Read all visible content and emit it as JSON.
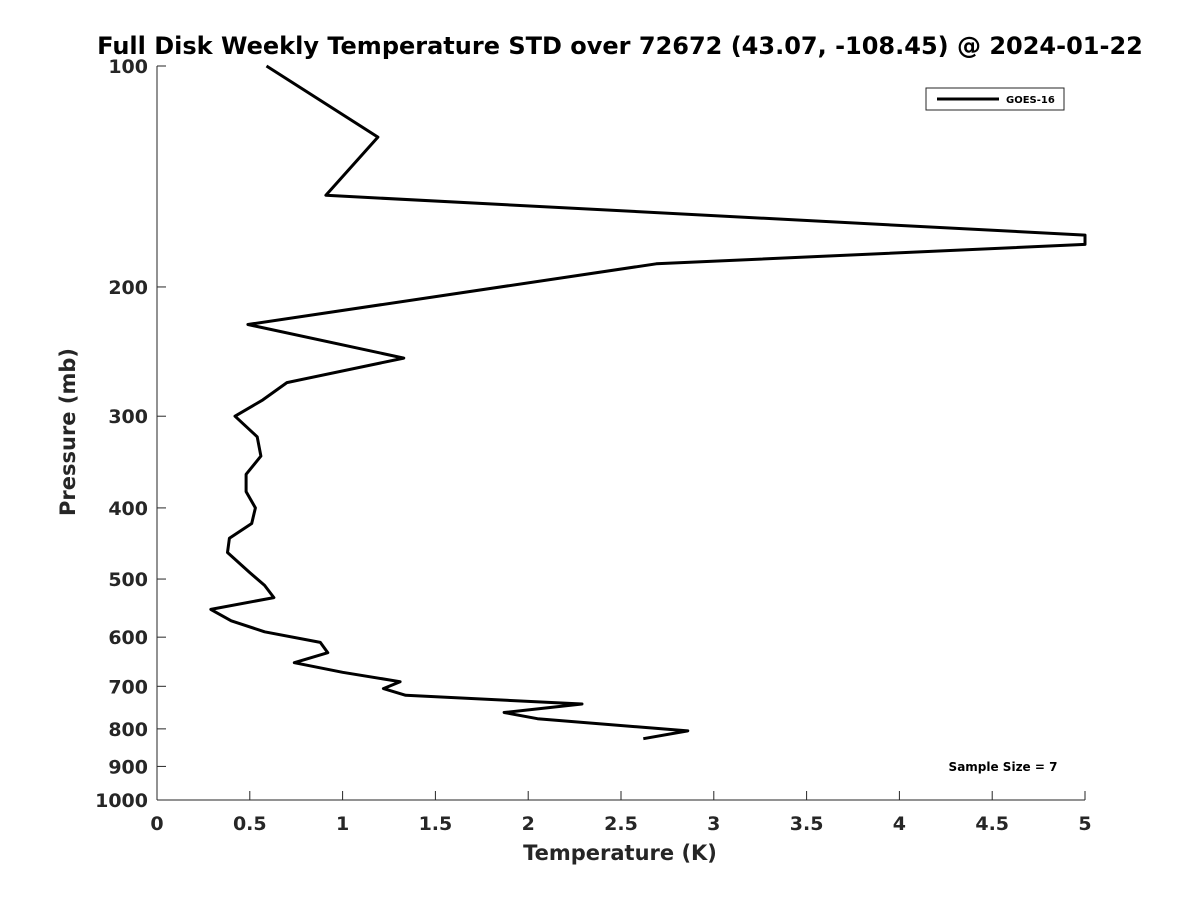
{
  "chart_data": {
    "type": "line",
    "title": "Full Disk Weekly Temperature STD over 72672 (43.07, -108.45) @ 2024-01-22",
    "xlabel": "Temperature (K)",
    "ylabel": "Pressure (mb)",
    "xlim": [
      0,
      5
    ],
    "ylim": [
      100,
      1000
    ],
    "yscale": "log",
    "y_reversed": true,
    "x_ticks": [
      0,
      0.5,
      1,
      1.5,
      2,
      2.5,
      3,
      3.5,
      4,
      4.5,
      5
    ],
    "x_tick_labels": [
      "0",
      "0.5",
      "1",
      "1.5",
      "2",
      "2.5",
      "3",
      "3.5",
      "4",
      "4.5",
      "5"
    ],
    "y_ticks": [
      100,
      200,
      300,
      400,
      500,
      600,
      700,
      800,
      900,
      1000
    ],
    "y_tick_labels": [
      "100",
      "200",
      "300",
      "400",
      "500",
      "600",
      "700",
      "800",
      "900",
      "1000"
    ],
    "legend": {
      "entries": [
        "GOES-16"
      ],
      "placement": "top-right"
    },
    "annotation": "Sample Size = 7",
    "series": [
      {
        "name": "GOES-16",
        "color": "#000000",
        "points": [
          {
            "x": 0.59,
            "p": 100
          },
          {
            "x": 1.19,
            "p": 125
          },
          {
            "x": 0.91,
            "p": 150
          },
          {
            "x": 5.0,
            "p": 170
          },
          {
            "x": 5.0,
            "p": 175
          },
          {
            "x": 2.69,
            "p": 186
          },
          {
            "x": 0.49,
            "p": 225
          },
          {
            "x": 1.33,
            "p": 250
          },
          {
            "x": 0.7,
            "p": 270
          },
          {
            "x": 0.57,
            "p": 285
          },
          {
            "x": 0.42,
            "p": 300
          },
          {
            "x": 0.54,
            "p": 320
          },
          {
            "x": 0.56,
            "p": 340
          },
          {
            "x": 0.48,
            "p": 360
          },
          {
            "x": 0.48,
            "p": 380
          },
          {
            "x": 0.53,
            "p": 400
          },
          {
            "x": 0.51,
            "p": 420
          },
          {
            "x": 0.39,
            "p": 440
          },
          {
            "x": 0.38,
            "p": 460
          },
          {
            "x": 0.5,
            "p": 490
          },
          {
            "x": 0.58,
            "p": 510
          },
          {
            "x": 0.63,
            "p": 530
          },
          {
            "x": 0.29,
            "p": 550
          },
          {
            "x": 0.4,
            "p": 570
          },
          {
            "x": 0.58,
            "p": 590
          },
          {
            "x": 0.88,
            "p": 610
          },
          {
            "x": 0.92,
            "p": 630
          },
          {
            "x": 0.74,
            "p": 650
          },
          {
            "x": 1.0,
            "p": 670
          },
          {
            "x": 1.31,
            "p": 690
          },
          {
            "x": 1.22,
            "p": 705
          },
          {
            "x": 1.34,
            "p": 720
          },
          {
            "x": 2.29,
            "p": 740
          },
          {
            "x": 1.87,
            "p": 760
          },
          {
            "x": 2.05,
            "p": 775
          },
          {
            "x": 2.86,
            "p": 805
          },
          {
            "x": 2.62,
            "p": 825
          }
        ]
      }
    ]
  }
}
